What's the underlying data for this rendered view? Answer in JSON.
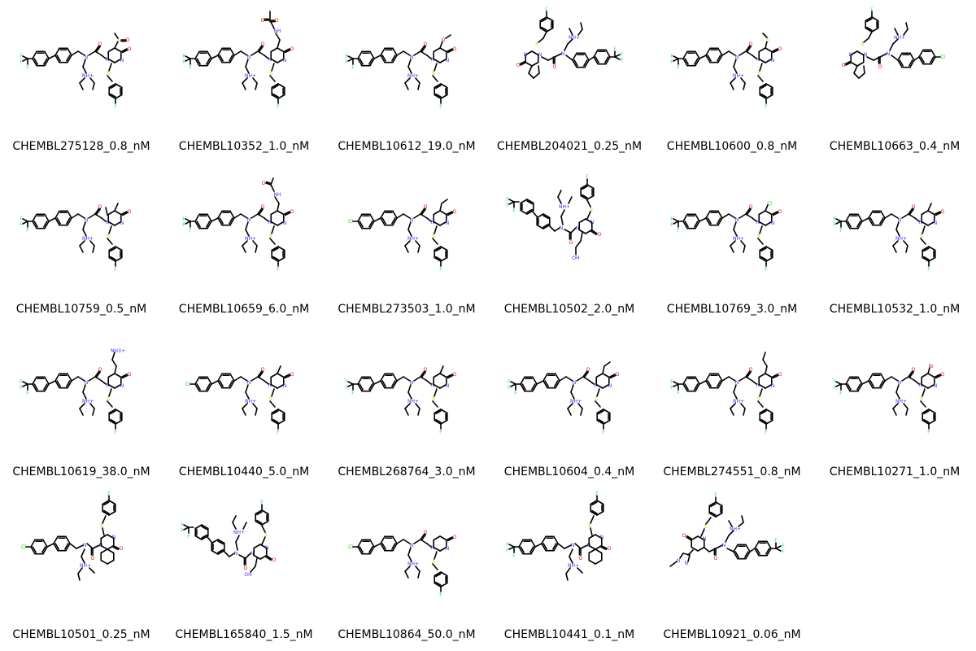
{
  "molecules": [
    {
      "label": "CHEMBL275128_0.8_nM",
      "tail": "CF3",
      "variant": "A",
      "ring_substituent": "sulfinyl"
    },
    {
      "label": "CHEMBL10352_1.0_nM",
      "tail": "CF3",
      "variant": "A",
      "ring_substituent": "sulfonamide"
    },
    {
      "label": "CHEMBL10612_19.0_nM",
      "tail": "CF3",
      "variant": "A",
      "ring_substituent": "methoxy"
    },
    {
      "label": "CHEMBL204021_0.25_nM",
      "tail": "CF3",
      "variant": "B",
      "ring_substituent": "cyclopenta"
    },
    {
      "label": "CHEMBL10600_0.8_nM",
      "tail": "CF3",
      "variant": "A",
      "ring_substituent": "methylthio"
    },
    {
      "label": "CHEMBL10663_0.4_nM",
      "tail": "Cl",
      "variant": "B",
      "ring_substituent": "cyclopenta"
    },
    {
      "label": "CHEMBL10759_0.5_nM",
      "tail": "CF3",
      "variant": "A",
      "ring_substituent": "dimethyl"
    },
    {
      "label": "CHEMBL10659_6.0_nM",
      "tail": "CF3",
      "variant": "A",
      "ring_substituent": "acetamide"
    },
    {
      "label": "CHEMBL273503_1.0_nM",
      "tail": "Cl",
      "variant": "A",
      "ring_substituent": "ethyl"
    },
    {
      "label": "CHEMBL10502_2.0_nM",
      "tail": "CF3",
      "variant": "C",
      "ring_substituent": "hydroxyethyl"
    },
    {
      "label": "CHEMBL10769_3.0_nM",
      "tail": "CF3",
      "variant": "A",
      "ring_substituent": "chloro"
    },
    {
      "label": "CHEMBL10532_1.0_nM",
      "tail": "CF3",
      "variant": "A",
      "ring_substituent": "methyl"
    },
    {
      "label": "CHEMBL10619_38.0_nM",
      "tail": "CF3",
      "variant": "A",
      "ring_substituent": "aminoethyl"
    },
    {
      "label": "CHEMBL10440_5.0_nM",
      "tail": "Cl",
      "variant": "A",
      "ring_substituent": "methyl"
    },
    {
      "label": "CHEMBL268764_3.0_nM",
      "tail": "CF3",
      "variant": "A",
      "ring_substituent": "methyl"
    },
    {
      "label": "CHEMBL10604_0.4_nM",
      "tail": "CF3",
      "variant": "A",
      "ring_substituent": "ethyl"
    },
    {
      "label": "CHEMBL274551_0.8_nM",
      "tail": "CF3",
      "variant": "A",
      "ring_substituent": "propyl"
    },
    {
      "label": "CHEMBL10271_1.0_nM",
      "tail": "CF3",
      "variant": "A",
      "ring_substituent": "bromo"
    },
    {
      "label": "CHEMBL10501_0.25_nM",
      "tail": "Cl",
      "variant": "D",
      "ring_substituent": "cyclohexa"
    },
    {
      "label": "CHEMBL165840_1.5_nM",
      "tail": "CF3",
      "variant": "C",
      "ring_substituent": "hydroxymethyl"
    },
    {
      "label": "CHEMBL10864_50.0_nM",
      "tail": "Cl",
      "variant": "A",
      "ring_substituent": "none"
    },
    {
      "label": "CHEMBL10441_0.1_nM",
      "tail": "CF3",
      "variant": "D",
      "ring_substituent": "cyclohexa"
    },
    {
      "label": "CHEMBL10921_0.06_nM",
      "tail": "CF3",
      "variant": "E",
      "ring_substituent": "pyrazolylmethyl"
    }
  ],
  "atoms": {
    "F": "F",
    "N": "N",
    "O": "O",
    "S": "S",
    "Cl": "Cl",
    "Br": "Br",
    "NH": "NH",
    "NH+": "NH+",
    "OH": "OH",
    "NH3+": "NH3+"
  },
  "colors": {
    "F": "#33cccc",
    "N": "#3333ff",
    "O": "#ff0000",
    "S": "#cccc00",
    "Cl": "#00cc00",
    "Br": "#a52a2a",
    "bond": "#000000"
  }
}
